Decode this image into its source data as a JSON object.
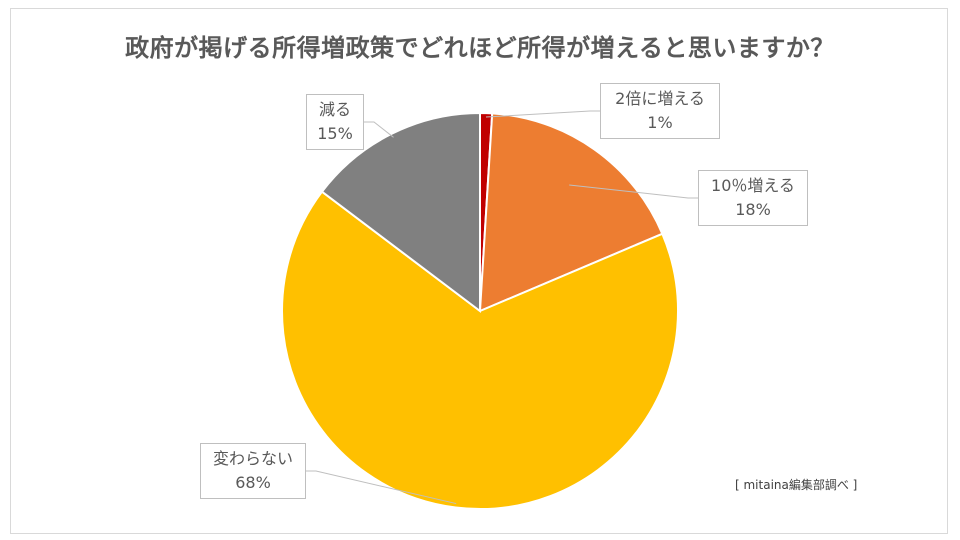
{
  "chart_data": {
    "type": "pie",
    "title": "政府が掲げる所得増政策でどれほど所得が増えると思いますか？",
    "slices": [
      {
        "label": "2倍に増える",
        "value": 1,
        "display": "1%",
        "color": "#C00000"
      },
      {
        "label": "10％増える",
        "value": 18,
        "display": "18%",
        "color": "#ED7D31"
      },
      {
        "label": "変わらない",
        "value": 68,
        "display": "68%",
        "color": "#FFC000"
      },
      {
        "label": "減る",
        "value": 15,
        "display": "15%",
        "color": "#808080"
      }
    ]
  },
  "source_note": "[ mitaina編集部調べ ]"
}
